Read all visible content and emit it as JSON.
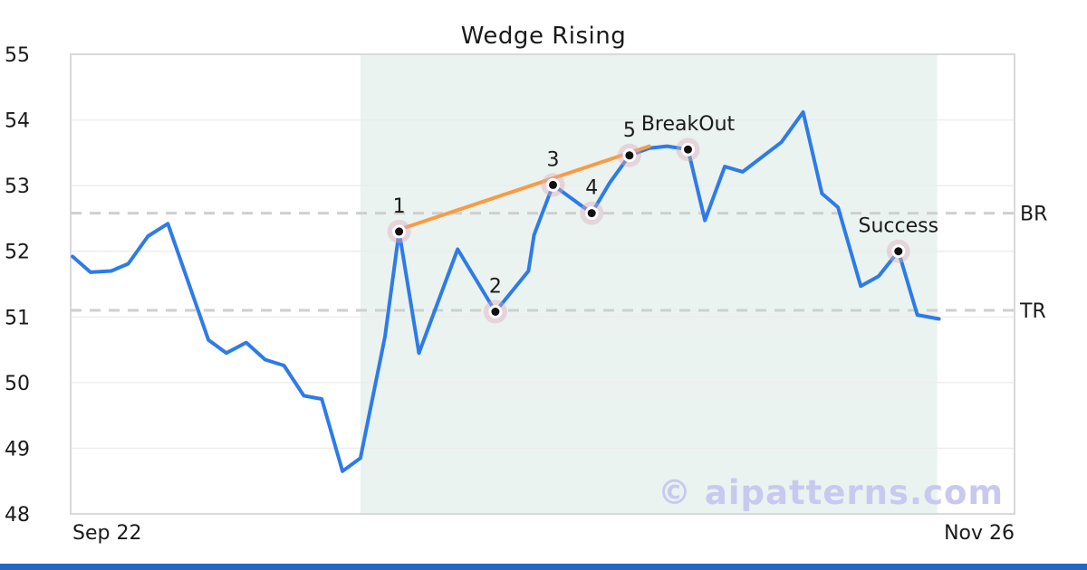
{
  "chart": {
    "title": "Wedge Rising",
    "watermark_text": "© aipatterns.com",
    "x_axis_left": "Sep 22",
    "x_axis_right": "Nov 26"
  },
  "chart_data": {
    "type": "line",
    "title": "Wedge Rising",
    "xlabel": "",
    "ylabel": "",
    "x_axis_endpoint_labels": [
      "Sep 22",
      "Nov 26"
    ],
    "x_unit": "fraction_of_plot_width",
    "ylim": [
      48,
      55
    ],
    "y_ticks": [
      48,
      49,
      50,
      51,
      52,
      53,
      54,
      55
    ],
    "grid": "horizontal",
    "legend": "none",
    "series": [
      {
        "name": "price",
        "color": "#2e7be8",
        "points": [
          [
            0.002,
            51.92
          ],
          [
            0.021,
            51.68
          ],
          [
            0.043,
            51.7
          ],
          [
            0.061,
            51.81
          ],
          [
            0.082,
            52.23
          ],
          [
            0.103,
            52.42
          ],
          [
            0.146,
            50.65
          ],
          [
            0.165,
            50.45
          ],
          [
            0.186,
            50.61
          ],
          [
            0.206,
            50.35
          ],
          [
            0.226,
            50.26
          ],
          [
            0.247,
            49.8
          ],
          [
            0.266,
            49.75
          ],
          [
            0.288,
            48.65
          ],
          [
            0.307,
            48.85
          ],
          [
            0.333,
            50.7
          ],
          [
            0.348,
            52.3
          ],
          [
            0.369,
            50.45
          ],
          [
            0.41,
            52.03
          ],
          [
            0.45,
            51.08
          ],
          [
            0.485,
            51.7
          ],
          [
            0.491,
            52.25
          ],
          [
            0.511,
            53.01
          ],
          [
            0.535,
            52.76
          ],
          [
            0.552,
            52.58
          ],
          [
            0.571,
            53.04
          ],
          [
            0.592,
            53.46
          ],
          [
            0.613,
            53.57
          ],
          [
            0.632,
            53.6
          ],
          [
            0.654,
            53.55
          ],
          [
            0.672,
            52.47
          ],
          [
            0.693,
            53.29
          ],
          [
            0.712,
            53.21
          ],
          [
            0.753,
            53.66
          ],
          [
            0.776,
            54.12
          ],
          [
            0.796,
            52.88
          ],
          [
            0.813,
            52.67
          ],
          [
            0.837,
            51.47
          ],
          [
            0.856,
            51.62
          ],
          [
            0.877,
            52.0
          ],
          [
            0.897,
            51.03
          ],
          [
            0.92,
            50.97
          ]
        ]
      }
    ],
    "trendline": {
      "name": "rising-support-trendline",
      "color": "#f89b45",
      "from": [
        0.354,
        52.36
      ],
      "to": [
        0.613,
        53.6
      ]
    },
    "levels": [
      {
        "name": "BR",
        "value": 52.58,
        "style": "dashed"
      },
      {
        "name": "TR",
        "value": 51.1,
        "style": "dashed"
      }
    ],
    "pattern_region": {
      "x_start": 0.307,
      "x_end": 0.918,
      "color": "#eaf3ef"
    },
    "annotations": [
      {
        "label": "1",
        "x": 0.348,
        "y": 52.3
      },
      {
        "label": "2",
        "x": 0.45,
        "y": 51.08
      },
      {
        "label": "3",
        "x": 0.511,
        "y": 53.01
      },
      {
        "label": "4",
        "x": 0.552,
        "y": 52.58
      },
      {
        "label": "5",
        "x": 0.592,
        "y": 53.46
      },
      {
        "label": "BreakOut",
        "x": 0.654,
        "y": 53.55
      },
      {
        "label": "Success",
        "x": 0.877,
        "y": 52.0
      }
    ]
  },
  "colors": {
    "line": "#2e7be8",
    "trendline": "#f89b45",
    "marker_halo": "rgba(222,170,190,0.42)",
    "marker_dot": "#111111",
    "pattern_region": "#eaf3ef",
    "dashed_level": "#cfcfcf",
    "gridline": "#ececec",
    "plot_border": "#d9d9d9",
    "watermark": "#c9c9f0",
    "footer_bar": "#2068c8",
    "text": "#1a1a1a"
  }
}
